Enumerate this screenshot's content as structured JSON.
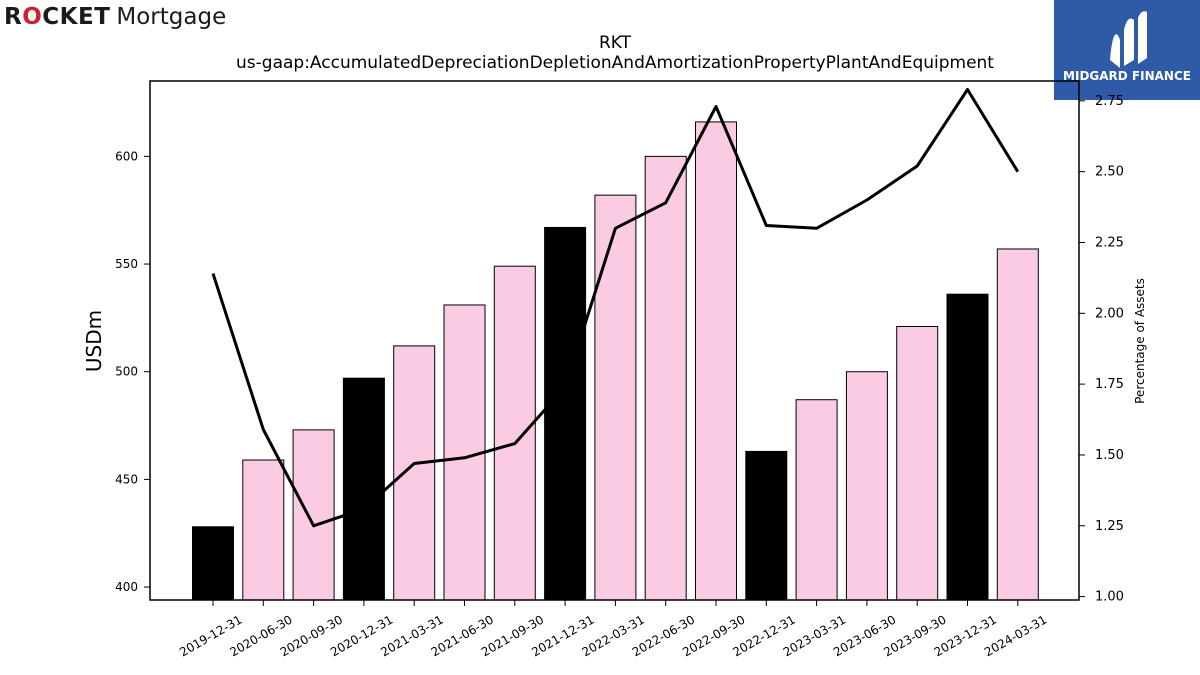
{
  "logos": {
    "left": {
      "word1": "ROCKET",
      "word2": "Mortgage"
    },
    "right": {
      "text": "MIDGARD FINANCE"
    }
  },
  "chart_data": {
    "type": "bar",
    "title": "RKT",
    "subtitle": "us-gaap:AccumulatedDepreciationDepletionAndAmortizationPropertyPlantAndEquipment",
    "ylabel": "USDm",
    "y2label": "Percentage of Assets",
    "ylim": [
      394,
      635
    ],
    "y2lim": [
      0.988,
      2.82
    ],
    "yticks": [
      400,
      450,
      500,
      550,
      600
    ],
    "y2ticks": [
      1.0,
      1.25,
      1.5,
      1.75,
      2.0,
      2.25,
      2.5,
      2.75
    ],
    "y2tick_labels": [
      "1.00",
      "1.25",
      "1.50",
      "1.75",
      "2.00",
      "2.25",
      "2.50",
      "2.75"
    ],
    "categories": [
      "2019-12-31",
      "2020-06-30",
      "2020-09-30",
      "2020-12-31",
      "2021-03-31",
      "2021-06-30",
      "2021-09-30",
      "2021-12-31",
      "2022-03-31",
      "2022-06-30",
      "2022-09-30",
      "2022-12-31",
      "2023-03-31",
      "2023-06-30",
      "2023-09-30",
      "2023-12-31",
      "2024-03-31"
    ],
    "series": [
      {
        "type": "bar",
        "axis": "left",
        "values": [
          428,
          459,
          473,
          497,
          512,
          531,
          549,
          567,
          582,
          600,
          616,
          463,
          487,
          500,
          521,
          536,
          557
        ],
        "fiscal_year_end": [
          true,
          false,
          false,
          true,
          false,
          false,
          false,
          true,
          false,
          false,
          false,
          true,
          false,
          false,
          false,
          true,
          false
        ]
      },
      {
        "type": "line",
        "axis": "right",
        "values": [
          2.14,
          1.59,
          1.25,
          1.31,
          1.47,
          1.49,
          1.54,
          1.74,
          2.3,
          2.39,
          2.73,
          2.31,
          2.3,
          2.4,
          2.52,
          2.79,
          2.5
        ]
      }
    ],
    "colors": {
      "bar_fill": "#fbcbe4",
      "bar_edge": "#000000",
      "fiscal_year_bar": "#000000",
      "line": "#000000",
      "logo_blue": "#2e5aa8",
      "logo_red": "#d0202e"
    },
    "grid": false,
    "legend": "none"
  }
}
